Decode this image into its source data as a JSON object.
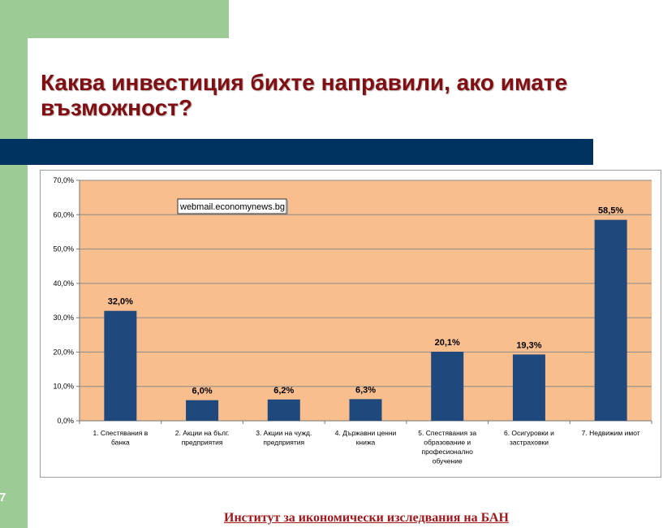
{
  "slide": {
    "title": "Каква  инвестиция бихте направили, ако имате възможност?",
    "footer": "Институт за икономически изследвания на БАН",
    "slide_number": "7"
  },
  "tooltip": {
    "text": "webmail.economynews.bg"
  },
  "colors": {
    "green_frame": "#9dcb95",
    "band": "#00335f",
    "title": "#7f0f12",
    "plot_background": "#f9be8e",
    "bar": "#1f497d",
    "footer": "#a3161a"
  },
  "chart_data": {
    "type": "bar",
    "title": "",
    "xlabel": "",
    "ylabel": "",
    "ylim": [
      0,
      70
    ],
    "y_ticks": [
      "0,0%",
      "10,0%",
      "20,0%",
      "30,0%",
      "40,0%",
      "50,0%",
      "60,0%",
      "70,0%"
    ],
    "grid": true,
    "categories": [
      "1. Спестявания в банка",
      "2. Акции на бълг. предприятия",
      "3. Акции на чужд. предприятия",
      "4. Държавни ценни книжа",
      "5. Спестявания за образование и професионално обучение",
      "6. Осигуровки и застраховки",
      "7. Недвижим имот"
    ],
    "values": [
      32.0,
      6.0,
      6.2,
      6.3,
      20.1,
      19.3,
      58.5
    ],
    "data_labels": [
      "32,0%",
      "6,0%",
      "6,2%",
      "6,3%",
      "20,1%",
      "19,3%",
      "58,5%"
    ]
  }
}
